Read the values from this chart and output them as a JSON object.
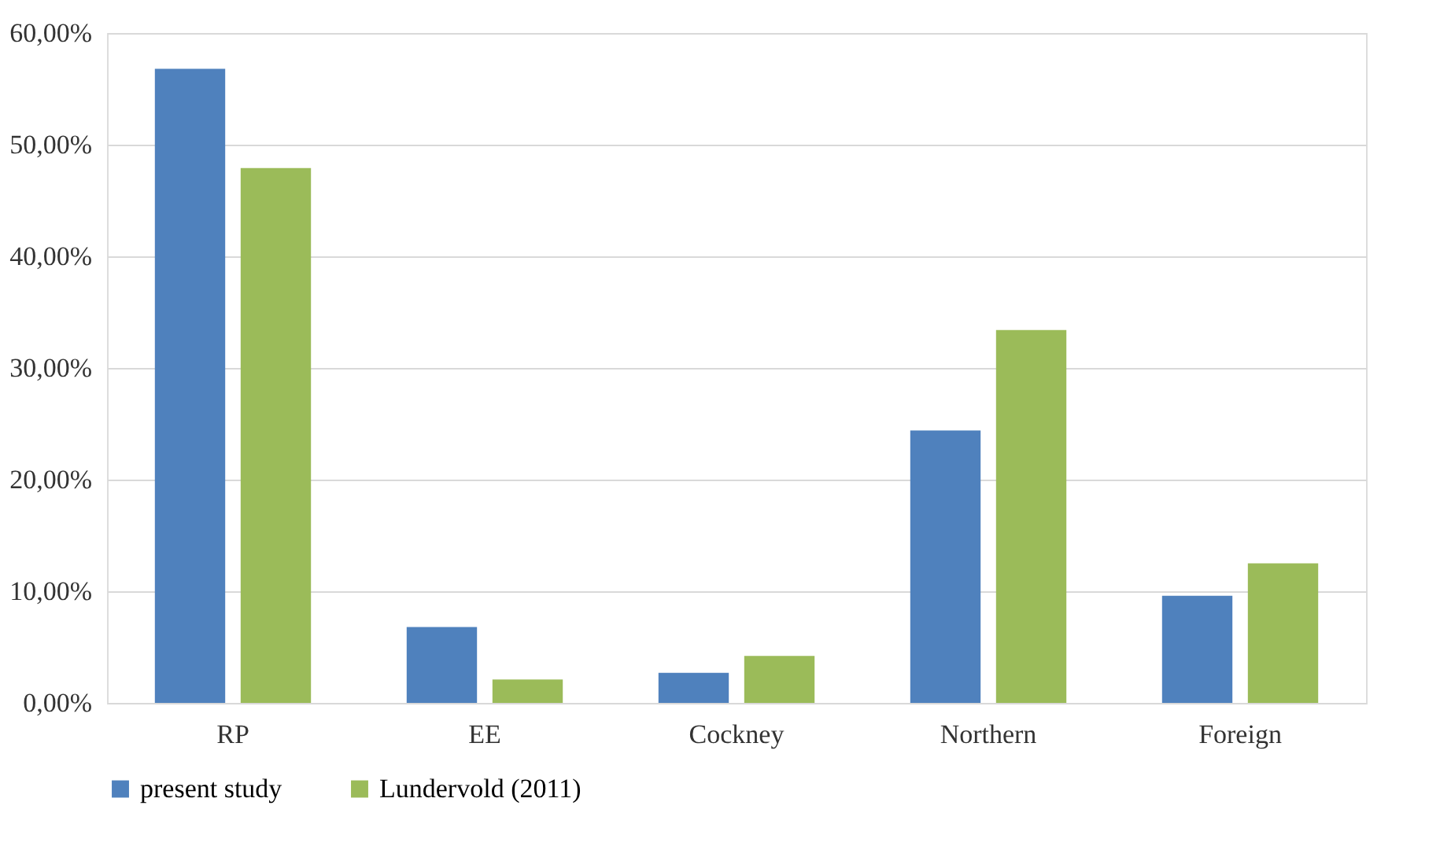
{
  "chart_data": {
    "type": "bar",
    "categories": [
      "RP",
      "EE",
      "Cockney",
      "Northern",
      "Foreign"
    ],
    "series": [
      {
        "name": "present study",
        "color": "#4f81bd",
        "values": [
          56.8,
          6.8,
          2.7,
          24.4,
          9.6
        ]
      },
      {
        "name": "Lundervold (2011)",
        "color": "#9bbb59",
        "values": [
          47.9,
          2.1,
          4.2,
          33.4,
          12.5
        ]
      }
    ],
    "ylim": [
      0,
      60
    ],
    "yticks": [
      {
        "value": 0,
        "label": "0,00%"
      },
      {
        "value": 10,
        "label": "10,00%"
      },
      {
        "value": 20,
        "label": "20,00%"
      },
      {
        "value": 30,
        "label": "30,00%"
      },
      {
        "value": 40,
        "label": "40,00%"
      },
      {
        "value": 50,
        "label": "50,00%"
      },
      {
        "value": 60,
        "label": "60,00%"
      }
    ],
    "grid": "y",
    "legend": "bottom"
  }
}
